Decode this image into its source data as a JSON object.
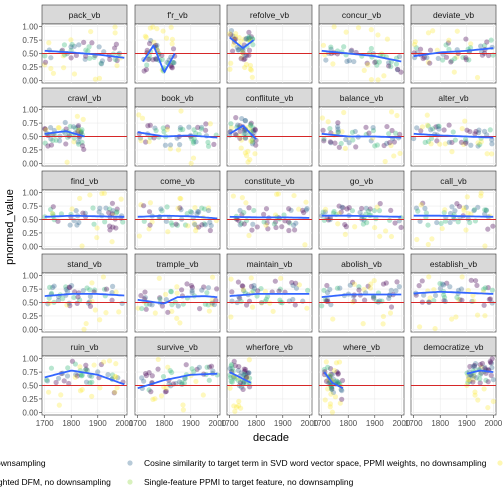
{
  "chart_data": {
    "type": "scatter",
    "facets": [
      "pack_vb",
      "f'r_vb",
      "refolve_vb",
      "concur_vb",
      "deviate_vb",
      "crawl_vb",
      "book_vb",
      "conflitute_vb",
      "balance_vb",
      "alter_vb",
      "find_vb",
      "come_vb",
      "constitute_vb",
      "go_vb",
      "call_vb",
      "stand_vb",
      "trample_vb",
      "maintain_vb",
      "abolish_vb",
      "establish_vb",
      "ruin_vb",
      "survive_vb",
      "wherfore_vb",
      "where_vb",
      "democratize_vb"
    ],
    "xlabel": "decade",
    "ylabel": "pnormed_value",
    "xlim": [
      1690,
      2010
    ],
    "ylim": [
      -0.05,
      1.05
    ],
    "xticks": [
      "1700",
      "1800",
      "1900",
      "2000",
      "1700",
      "1800",
      "1900",
      "2000",
      "1700",
      "1800",
      "1900",
      "2000",
      "1700",
      "1800",
      "1900",
      "2000",
      "1700",
      "1800",
      "1900",
      "2000"
    ],
    "yticks": [
      "1.00",
      "0.75",
      "0.50",
      "0.25",
      "0.00"
    ],
    "reference_line": {
      "y": 0.5,
      "color": "#d62728"
    },
    "smooth_color": "#3366ff",
    "grid": true,
    "legend_position": "bottom",
    "legend": [
      {
        "label": "ownsampling",
        "color": "#440154"
      },
      {
        "label": "Cosine similarity to target term in SVD word vector space, PPMI weights, no downsampling",
        "color": "#31688e"
      },
      {
        "label": "ighted DFM, no downsampling",
        "color": "#35b779"
      },
      {
        "label": "Single-feature PPMI to target feature, no downsampling",
        "color": "#90d743"
      }
    ],
    "series_colors": [
      "#440154",
      "#31688e",
      "#35b779",
      "#fde725"
    ],
    "trends": {
      "pack_vb": [
        [
          1700,
          0.55
        ],
        [
          1800,
          0.52
        ],
        [
          1900,
          0.48
        ],
        [
          2000,
          0.42
        ]
      ],
      "f'r_vb": [
        [
          1720,
          0.35
        ],
        [
          1760,
          0.65
        ],
        [
          1800,
          0.15
        ],
        [
          1840,
          0.5
        ]
      ],
      "refolve_vb": [
        [
          1700,
          0.8
        ],
        [
          1750,
          0.6
        ],
        [
          1790,
          0.75
        ]
      ],
      "concur_vb": [
        [
          1700,
          0.55
        ],
        [
          1800,
          0.5
        ],
        [
          1900,
          0.45
        ],
        [
          2000,
          0.35
        ]
      ],
      "deviate_vb": [
        [
          1700,
          0.45
        ],
        [
          1800,
          0.52
        ],
        [
          1900,
          0.55
        ],
        [
          2000,
          0.6
        ]
      ],
      "crawl_vb": [
        [
          1700,
          0.55
        ],
        [
          1780,
          0.6
        ],
        [
          1850,
          0.5
        ]
      ],
      "book_vb": [
        [
          1700,
          0.58
        ],
        [
          1800,
          0.5
        ],
        [
          1900,
          0.52
        ],
        [
          2000,
          0.48
        ]
      ],
      "conflitute_vb": [
        [
          1700,
          0.55
        ],
        [
          1750,
          0.7
        ],
        [
          1800,
          0.45
        ]
      ],
      "balance_vb": [
        [
          1700,
          0.55
        ],
        [
          1800,
          0.5
        ],
        [
          1900,
          0.5
        ],
        [
          2000,
          0.48
        ]
      ],
      "alter_vb": [
        [
          1700,
          0.55
        ],
        [
          1800,
          0.52
        ],
        [
          1900,
          0.5
        ],
        [
          2000,
          0.48
        ]
      ],
      "find_vb": [
        [
          1700,
          0.55
        ],
        [
          1800,
          0.57
        ],
        [
          1900,
          0.56
        ],
        [
          2000,
          0.55
        ]
      ],
      "come_vb": [
        [
          1700,
          0.55
        ],
        [
          1800,
          0.57
        ],
        [
          1900,
          0.56
        ],
        [
          2000,
          0.52
        ]
      ],
      "constitute_vb": [
        [
          1700,
          0.55
        ],
        [
          1800,
          0.54
        ],
        [
          1900,
          0.54
        ],
        [
          2000,
          0.53
        ]
      ],
      "go_vb": [
        [
          1700,
          0.57
        ],
        [
          1800,
          0.57
        ],
        [
          1900,
          0.56
        ],
        [
          2000,
          0.55
        ]
      ],
      "call_vb": [
        [
          1700,
          0.57
        ],
        [
          1800,
          0.57
        ],
        [
          1900,
          0.56
        ],
        [
          2000,
          0.55
        ]
      ],
      "stand_vb": [
        [
          1700,
          0.62
        ],
        [
          1800,
          0.66
        ],
        [
          1900,
          0.66
        ],
        [
          2000,
          0.63
        ]
      ],
      "trample_vb": [
        [
          1700,
          0.55
        ],
        [
          1800,
          0.48
        ],
        [
          1850,
          0.6
        ],
        [
          1950,
          0.62
        ],
        [
          2000,
          0.6
        ]
      ],
      "maintain_vb": [
        [
          1700,
          0.62
        ],
        [
          1800,
          0.66
        ],
        [
          1900,
          0.66
        ],
        [
          2000,
          0.66
        ]
      ],
      "abolish_vb": [
        [
          1700,
          0.6
        ],
        [
          1800,
          0.65
        ],
        [
          1900,
          0.65
        ],
        [
          2000,
          0.65
        ]
      ],
      "establish_vb": [
        [
          1700,
          0.67
        ],
        [
          1800,
          0.7
        ],
        [
          1900,
          0.68
        ],
        [
          2000,
          0.66
        ]
      ],
      "ruin_vb": [
        [
          1700,
          0.65
        ],
        [
          1800,
          0.78
        ],
        [
          1900,
          0.7
        ],
        [
          2000,
          0.52
        ]
      ],
      "survive_vb": [
        [
          1700,
          0.45
        ],
        [
          1800,
          0.6
        ],
        [
          1900,
          0.7
        ],
        [
          2000,
          0.72
        ]
      ],
      "wherfore_vb": [
        [
          1700,
          0.75
        ],
        [
          1740,
          0.65
        ],
        [
          1780,
          0.55
        ]
      ],
      "where_vb": [
        [
          1710,
          0.75
        ],
        [
          1740,
          0.55
        ],
        [
          1780,
          0.45
        ]
      ],
      "democratize_vb": [
        [
          1900,
          0.72
        ],
        [
          1950,
          0.78
        ],
        [
          2000,
          0.75
        ]
      ]
    }
  }
}
